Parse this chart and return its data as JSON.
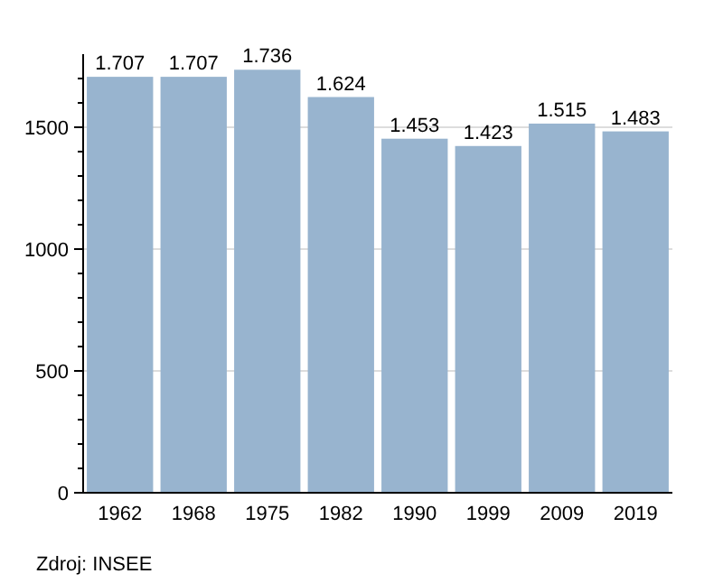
{
  "chart_data": {
    "type": "bar",
    "categories": [
      "1962",
      "1968",
      "1975",
      "1982",
      "1990",
      "1999",
      "2009",
      "2019"
    ],
    "values": [
      1707,
      1707,
      1736,
      1624,
      1453,
      1423,
      1515,
      1483
    ],
    "value_labels": [
      "1.707",
      "1.707",
      "1.736",
      "1.624",
      "1.453",
      "1.423",
      "1.515",
      "1.483"
    ],
    "color": "#98b4cf",
    "ylim": [
      0,
      1800
    ],
    "yticks": [
      0,
      {
        "value": 100,
        "label": null
      },
      {
        "value": 200,
        "label": null
      },
      {
        "value": 300,
        "label": null
      },
      {
        "value": 400,
        "label": null
      },
      500,
      {
        "value": 600,
        "label": null
      },
      {
        "value": 700,
        "label": null
      },
      {
        "value": 800,
        "label": null
      },
      {
        "value": 900,
        "label": null
      },
      1000,
      {
        "value": 1100,
        "label": null
      },
      {
        "value": 1200,
        "label": null
      },
      {
        "value": 1300,
        "label": null
      },
      {
        "value": 1400,
        "label": null
      },
      1500,
      {
        "value": 1600,
        "label": null
      },
      {
        "value": 1700,
        "label": null
      }
    ],
    "grid": "y",
    "annotations": [
      "Zdroj: INSEE"
    ]
  }
}
